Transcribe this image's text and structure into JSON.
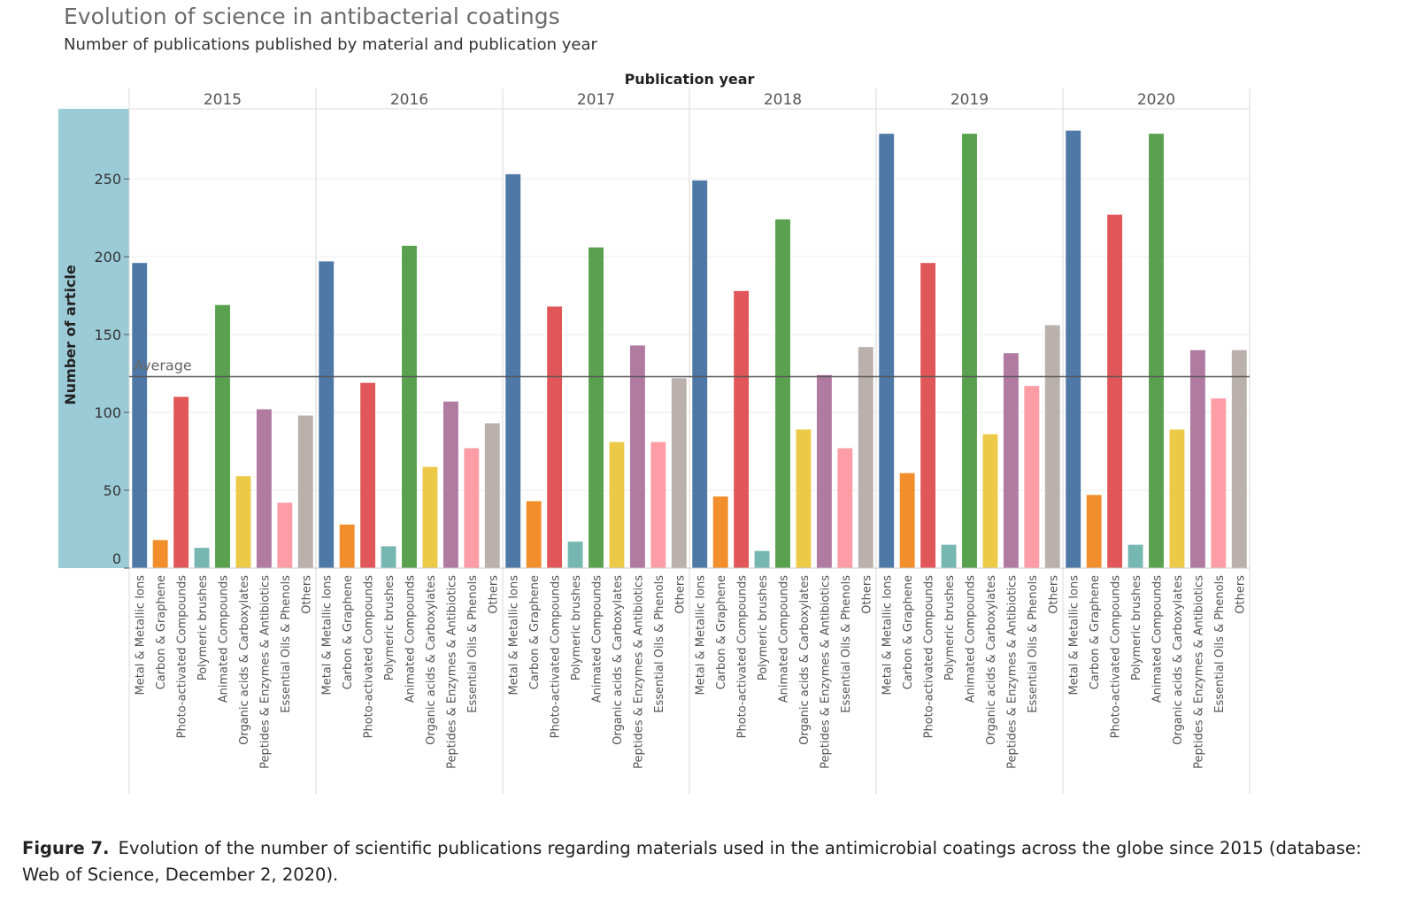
{
  "chart_data": {
    "type": "bar",
    "title": "Evolution of science in antibacterial coatings",
    "subtitle": "Number of publications published by material and publication year",
    "column_header": "Publication year",
    "ylabel": "Number of article",
    "ylim": [
      0,
      295
    ],
    "yticks": [
      0,
      50,
      100,
      150,
      200,
      250
    ],
    "grid": true,
    "reference_line": {
      "label": "Average",
      "value": 123
    },
    "years": [
      "2015",
      "2016",
      "2017",
      "2018",
      "2019",
      "2020"
    ],
    "categories": [
      "Metal & Metallic Ions",
      "Carbon & Graphene",
      "Photo-activated Compounds",
      "Polymeric brushes",
      "Animated Compounds",
      "Organic acids & Carboxylates",
      "Peptides & Enzymes & Antibiotics",
      "Essential Oils & Phenols",
      "Others"
    ],
    "colors": [
      "#4e79a7",
      "#f28e2b",
      "#e15759",
      "#76b7b2",
      "#59a14f",
      "#edc948",
      "#b07aa1",
      "#ff9da7",
      "#bab0ac"
    ],
    "series": [
      {
        "year": "2015",
        "values": [
          196,
          18,
          110,
          13,
          169,
          59,
          102,
          42,
          98
        ]
      },
      {
        "year": "2016",
        "values": [
          197,
          28,
          119,
          14,
          207,
          65,
          107,
          77,
          93
        ]
      },
      {
        "year": "2017",
        "values": [
          253,
          43,
          168,
          17,
          206,
          81,
          143,
          81,
          122
        ]
      },
      {
        "year": "2018",
        "values": [
          249,
          46,
          178,
          11,
          224,
          89,
          124,
          77,
          142
        ]
      },
      {
        "year": "2019",
        "values": [
          279,
          61,
          196,
          15,
          279,
          86,
          138,
          117,
          156
        ]
      },
      {
        "year": "2020",
        "values": [
          281,
          47,
          227,
          15,
          279,
          89,
          140,
          109,
          140
        ]
      }
    ]
  },
  "caption": {
    "label": "Figure 7.",
    "text": "Evolution of the number of scientific publications regarding materials used in the antimicrobial coatings across the globe since 2015 (database: Web of Science, December 2, 2020)."
  }
}
